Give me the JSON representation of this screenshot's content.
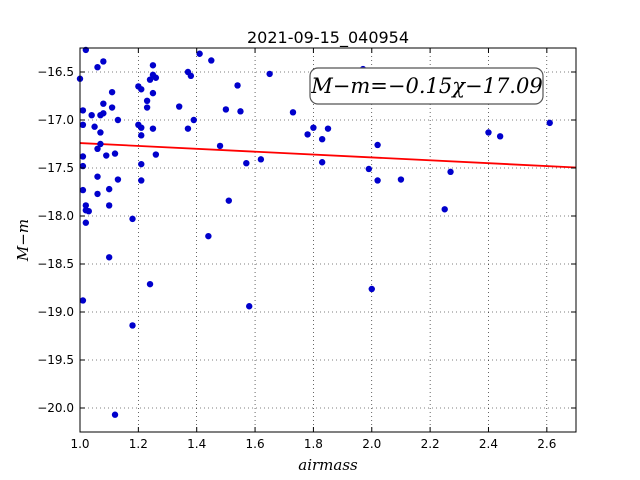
{
  "chart_data": {
    "type": "scatter",
    "title": "2021-09-15_040954",
    "xlabel": "airmass",
    "ylabel": "M−m",
    "xlim": [
      1.0,
      2.7
    ],
    "ylim": [
      -20.25,
      -16.25
    ],
    "y_inverted": true,
    "grid": true,
    "x_ticks": [
      1.0,
      1.2,
      1.4,
      1.6,
      1.8,
      2.0,
      2.2,
      2.4,
      2.6
    ],
    "x_tick_labels": [
      "1.0",
      "1.2",
      "1.4",
      "1.6",
      "1.8",
      "2.0",
      "2.2",
      "2.4",
      "2.6"
    ],
    "y_ticks": [
      -16.5,
      -17.0,
      -17.5,
      -18.0,
      -18.5,
      -19.0,
      -19.5,
      -20.0
    ],
    "y_tick_labels": [
      "−16.5",
      "−17.0",
      "−17.5",
      "−18.0",
      "−18.5",
      "−19.0",
      "−19.5",
      "−20.0"
    ],
    "annotation": "M−m=−0.15χ−17.09",
    "fit": {
      "slope": -0.15,
      "intercept": -17.09,
      "color": "#ff0000"
    },
    "point_color": "#0000cc",
    "points": [
      [
        1.0,
        -16.57
      ],
      [
        1.02,
        -16.27
      ],
      [
        1.01,
        -16.9
      ],
      [
        1.01,
        -17.05
      ],
      [
        1.01,
        -17.38
      ],
      [
        1.01,
        -17.48
      ],
      [
        1.01,
        -17.73
      ],
      [
        1.02,
        -17.89
      ],
      [
        1.02,
        -17.94
      ],
      [
        1.02,
        -18.07
      ],
      [
        1.03,
        -17.95
      ],
      [
        1.01,
        -18.88
      ],
      [
        1.04,
        -16.95
      ],
      [
        1.05,
        -17.07
      ],
      [
        1.06,
        -16.45
      ],
      [
        1.06,
        -17.3
      ],
      [
        1.06,
        -17.59
      ],
      [
        1.06,
        -17.77
      ],
      [
        1.07,
        -16.95
      ],
      [
        1.07,
        -17.25
      ],
      [
        1.08,
        -16.39
      ],
      [
        1.08,
        -16.83
      ],
      [
        1.08,
        -16.93
      ],
      [
        1.07,
        -17.13
      ],
      [
        1.09,
        -17.37
      ],
      [
        1.1,
        -17.72
      ],
      [
        1.1,
        -17.89
      ],
      [
        1.1,
        -18.43
      ],
      [
        1.11,
        -16.71
      ],
      [
        1.11,
        -16.87
      ],
      [
        1.12,
        -17.35
      ],
      [
        1.13,
        -17.0
      ],
      [
        1.13,
        -17.62
      ],
      [
        1.12,
        -20.07
      ],
      [
        1.18,
        -18.03
      ],
      [
        1.18,
        -19.14
      ],
      [
        1.2,
        -16.65
      ],
      [
        1.2,
        -17.05
      ],
      [
        1.21,
        -17.08
      ],
      [
        1.21,
        -17.16
      ],
      [
        1.21,
        -16.68
      ],
      [
        1.21,
        -17.46
      ],
      [
        1.21,
        -17.63
      ],
      [
        1.23,
        -16.87
      ],
      [
        1.23,
        -16.8
      ],
      [
        1.24,
        -16.58
      ],
      [
        1.25,
        -16.43
      ],
      [
        1.25,
        -16.53
      ],
      [
        1.25,
        -16.72
      ],
      [
        1.26,
        -16.56
      ],
      [
        1.25,
        -17.09
      ],
      [
        1.26,
        -17.36
      ],
      [
        1.24,
        -18.71
      ],
      [
        1.34,
        -16.86
      ],
      [
        1.37,
        -16.5
      ],
      [
        1.38,
        -16.54
      ],
      [
        1.37,
        -17.09
      ],
      [
        1.39,
        -17.0
      ],
      [
        1.41,
        -16.31
      ],
      [
        1.45,
        -16.38
      ],
      [
        1.44,
        -18.21
      ],
      [
        1.48,
        -17.27
      ],
      [
        1.5,
        -16.89
      ],
      [
        1.51,
        -17.84
      ],
      [
        1.54,
        -16.64
      ],
      [
        1.55,
        -16.91
      ],
      [
        1.57,
        -17.45
      ],
      [
        1.58,
        -18.94
      ],
      [
        1.62,
        -17.41
      ],
      [
        1.65,
        -16.52
      ],
      [
        1.73,
        -16.92
      ],
      [
        1.78,
        -17.15
      ],
      [
        1.8,
        -17.08
      ],
      [
        1.83,
        -17.2
      ],
      [
        1.85,
        -17.09
      ],
      [
        1.83,
        -17.44
      ],
      [
        1.97,
        -16.47
      ],
      [
        1.99,
        -17.51
      ],
      [
        2.0,
        -18.76
      ],
      [
        2.02,
        -17.26
      ],
      [
        2.02,
        -17.63
      ],
      [
        2.1,
        -17.62
      ],
      [
        2.25,
        -17.93
      ],
      [
        2.27,
        -17.54
      ],
      [
        2.4,
        -17.13
      ],
      [
        2.44,
        -17.17
      ],
      [
        2.61,
        -17.03
      ]
    ]
  }
}
